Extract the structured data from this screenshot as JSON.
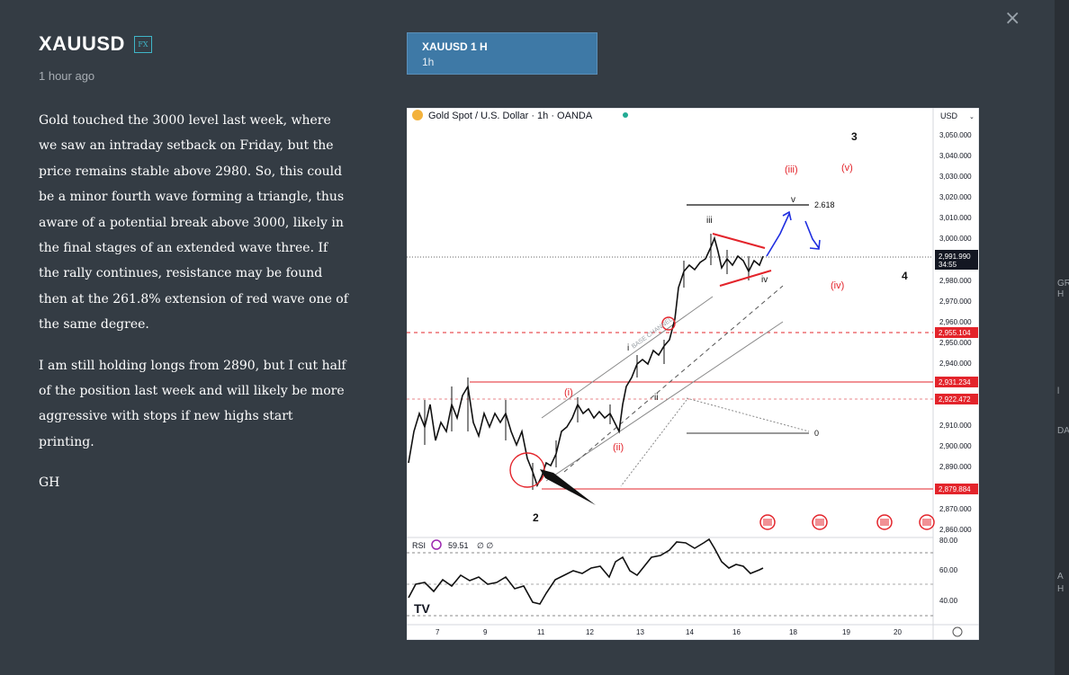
{
  "post": {
    "title": "XAUUSD",
    "badge": "FX",
    "time": "1 hour ago",
    "paragraphs": [
      "Gold touched the 3000 level last week, where we saw an intraday setback on Friday, but the price remains stable above 2980. So, this could be a minor fourth wave forming a triangle, thus aware of a potential break above 3000, likely in the final stages of an extended wave three. If the rally continues, resistance may be found then at the 261.8% extension of red wave one of the same degree.",
      "I am still holding longs from 2890, but I cut half of the position last week and will likely be more aggressive with stops if new highs start printing.",
      "GH"
    ]
  },
  "close_icon": "×",
  "tab": {
    "title": "XAUUSD 1 H",
    "subtitle": "1h"
  },
  "right_strip": [
    "GR",
    "H",
    "l",
    "DA",
    "A",
    "H"
  ],
  "chart": {
    "symbol": "Gold Spot / U.S. Dollar · 1h · OANDA",
    "currency": "USD",
    "price_ticks": [
      "3,050.000",
      "3,040.000",
      "3,030.000",
      "3,020.000",
      "3,010.000",
      "3,000.000",
      "2,980.000",
      "2,970.000",
      "2,960.000",
      "2,950.000",
      "2,940.000",
      "2,910.000",
      "2,900.000",
      "2,890.000",
      "2,870.000",
      "2,860.000"
    ],
    "current_price": "2,991.990",
    "countdown": "34:55",
    "price_labels": {
      "l1": "2,955.104",
      "l2": "2,931.234",
      "l3": "2,922.472",
      "l4": "2,879.884"
    },
    "date_ticks": [
      "7",
      "9",
      "11",
      "12",
      "13",
      "14",
      "16",
      "18",
      "19",
      "20"
    ],
    "rsi": {
      "label": "RSI",
      "value": "59.51",
      "extra": "∅ ∅",
      "ticks": [
        "80.00",
        "60.00",
        "40.00"
      ]
    },
    "labels": {
      "w3": "3",
      "w4": "4",
      "w2": "2",
      "iii_red": "(iii)",
      "v_red": "(v)",
      "iv_red": "(iv)",
      "i_red": "(i)",
      "ii_red": "(ii)",
      "iii": "iii",
      "iv": "iv",
      "i": "i",
      "ii": "ii",
      "v": "v",
      "fib": "2.618",
      "zero": "0",
      "channel": "BASE CHANNEL"
    },
    "colors": {
      "red": "#e3242b",
      "blue": "#1f2ee0",
      "black": "#111111"
    }
  }
}
